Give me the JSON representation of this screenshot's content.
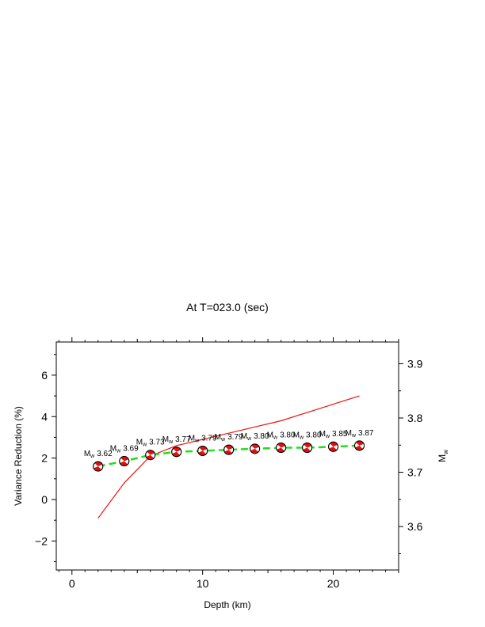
{
  "chart_data": {
    "type": "line",
    "title": "At T=023.0 (sec)",
    "xlabel": "Depth (km)",
    "ylabel": "Variance Reduction (%)",
    "y2label_main": "M",
    "y2label_sub": "w",
    "xlim": [
      -1.2,
      25
    ],
    "ylim": [
      -3.4,
      7.6
    ],
    "y2lim": [
      3.52,
      3.94
    ],
    "x_ticks": [
      0,
      10,
      20
    ],
    "y_ticks": [
      -2,
      0,
      2,
      4,
      6
    ],
    "y2_ticks": [
      3.6,
      3.7,
      3.8,
      3.9
    ],
    "y2_tick_labels": [
      "3.6",
      "3.7",
      "3.8",
      "3.9"
    ],
    "grid": false,
    "depths": [
      2,
      4,
      6,
      8,
      10,
      12,
      14,
      16,
      18,
      20,
      22
    ],
    "series": [
      {
        "role": "variance_reduction",
        "axis": "left",
        "color": "#ee1111",
        "style": "solid",
        "values": [
          -0.9,
          0.8,
          2.1,
          2.6,
          2.9,
          3.2,
          3.5,
          3.8,
          4.2,
          4.6,
          5.0
        ]
      },
      {
        "role": "mw_curve",
        "axis": "left",
        "color": "#22dd22",
        "style": "dashed",
        "values": [
          1.6,
          1.85,
          2.15,
          2.3,
          2.35,
          2.4,
          2.45,
          2.5,
          2.5,
          2.55,
          2.6
        ]
      }
    ],
    "annotations": [
      {
        "x": 2,
        "prefix": "M",
        "sub": "w",
        "value": "3.62"
      },
      {
        "x": 4,
        "prefix": "M",
        "sub": "w",
        "value": "3.69"
      },
      {
        "x": 6,
        "prefix": "M",
        "sub": "w",
        "value": "3.73"
      },
      {
        "x": 8,
        "prefix": "M",
        "sub": "w",
        "value": "3.77"
      },
      {
        "x": 10,
        "prefix": "M",
        "sub": "w",
        "value": "3.79"
      },
      {
        "x": 12,
        "prefix": "M",
        "sub": "w",
        "value": "3.79"
      },
      {
        "x": 14,
        "prefix": "M",
        "sub": "w",
        "value": "3.80"
      },
      {
        "x": 16,
        "prefix": "M",
        "sub": "w",
        "value": "3.80"
      },
      {
        "x": 18,
        "prefix": "M",
        "sub": "w",
        "value": "3.80"
      },
      {
        "x": 20,
        "prefix": "M",
        "sub": "w",
        "value": "3.85"
      },
      {
        "x": 22,
        "prefix": "M",
        "sub": "w",
        "value": "3.87"
      }
    ]
  }
}
